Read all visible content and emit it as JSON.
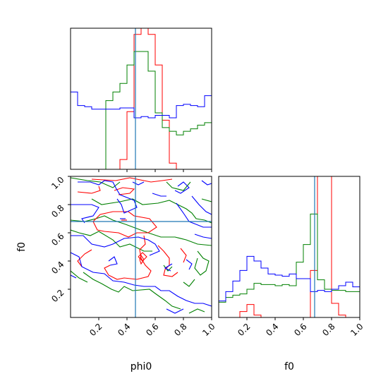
{
  "chart_data": {
    "type": "corner",
    "parameters": [
      "phi0",
      "f0"
    ],
    "colors": {
      "red": "#ff0000",
      "green": "#008000",
      "blue": "#0000ff",
      "truth": "#1f77b4",
      "axes": "#000000"
    },
    "truth": {
      "phi0": 0.46,
      "f0": 0.68
    },
    "ticks": {
      "values": [
        0.2,
        0.4,
        0.6,
        0.8,
        1.0
      ],
      "labels": [
        "0.2",
        "0.4",
        "0.6",
        "0.8",
        "1.0"
      ]
    },
    "labels": {
      "xlabel_left": "phi0",
      "xlabel_right": "f0",
      "ylabel": "f0"
    },
    "ranges": {
      "phi0": [
        0,
        1
      ],
      "f0": [
        0,
        1
      ]
    },
    "hist_phi0": {
      "bins": 20,
      "red": [
        0,
        0,
        0,
        0,
        0,
        0,
        0,
        0.08,
        0.47,
        1.1,
        1.15,
        1.1,
        0.85,
        0.4,
        0.05,
        0,
        0,
        0,
        0,
        0
      ],
      "green": [
        0,
        0,
        0,
        0,
        0,
        0.56,
        0.63,
        0.7,
        0.85,
        0.96,
        0.96,
        0.8,
        0.46,
        0.34,
        0.31,
        0.28,
        0.31,
        0.33,
        0.36,
        0.38
      ],
      "blue": [
        0.63,
        0.52,
        0.51,
        0.49,
        0.49,
        0.49,
        0.49,
        0.5,
        0.5,
        0.42,
        0.43,
        0.42,
        0.44,
        0.44,
        0.42,
        0.52,
        0.53,
        0.52,
        0.51,
        0.6
      ]
    },
    "hist_f0": {
      "bins": 20,
      "red": [
        0,
        0,
        0,
        0.05,
        0.11,
        0.02,
        0,
        0,
        0,
        0,
        0,
        0,
        0,
        0.4,
        1.2,
        1.2,
        0.12,
        0.02,
        0,
        0
      ],
      "green": [
        0.13,
        0.17,
        0.19,
        0.2,
        0.24,
        0.29,
        0.28,
        0.28,
        0.27,
        0.28,
        0.27,
        0.47,
        0.62,
        0.88,
        0.32,
        0.24,
        0.23,
        0.23,
        0.22,
        0.22
      ],
      "blue": [
        0.14,
        0.22,
        0.31,
        0.4,
        0.52,
        0.48,
        0.42,
        0.37,
        0.36,
        0.35,
        0.37,
        0.33,
        0.33,
        0.22,
        0.23,
        0.22,
        0.24,
        0.27,
        0.3,
        0.26
      ]
    },
    "contours": {
      "red": [
        [
          [
            0.15,
            0.98
          ],
          [
            0.32,
            0.97
          ],
          [
            0.42,
            0.99
          ],
          [
            0.57,
            0.96
          ],
          [
            0.65,
            0.97
          ],
          [
            0.72,
            0.98
          ]
        ],
        [
          [
            0.05,
            0.89
          ],
          [
            0.15,
            0.88
          ],
          [
            0.21,
            0.9
          ],
          [
            0.2,
            0.93
          ]
        ],
        [
          [
            0.31,
            0.9
          ],
          [
            0.37,
            0.92
          ],
          [
            0.45,
            0.91
          ],
          [
            0.42,
            0.88
          ],
          [
            0.34,
            0.87
          ]
        ],
        [
          [
            0.16,
            0.68
          ],
          [
            0.21,
            0.73
          ],
          [
            0.3,
            0.75
          ],
          [
            0.41,
            0.75
          ],
          [
            0.45,
            0.72
          ],
          [
            0.56,
            0.7
          ],
          [
            0.61,
            0.64
          ],
          [
            0.55,
            0.6
          ],
          [
            0.47,
            0.6
          ],
          [
            0.41,
            0.57
          ],
          [
            0.34,
            0.6
          ],
          [
            0.24,
            0.61
          ],
          [
            0.19,
            0.62
          ],
          [
            0.16,
            0.68
          ]
        ],
        [
          [
            0.52,
            0.58
          ],
          [
            0.53,
            0.52
          ],
          [
            0.49,
            0.48
          ],
          [
            0.5,
            0.42
          ],
          [
            0.53,
            0.37
          ],
          [
            0.57,
            0.33
          ],
          [
            0.55,
            0.29
          ],
          [
            0.47,
            0.27
          ],
          [
            0.38,
            0.28
          ],
          [
            0.33,
            0.27
          ],
          [
            0.27,
            0.3
          ],
          [
            0.24,
            0.35
          ],
          [
            0.28,
            0.37
          ]
        ],
        [
          [
            0.62,
            0.51
          ],
          [
            0.66,
            0.47
          ],
          [
            0.7,
            0.42
          ],
          [
            0.7,
            0.37
          ],
          [
            0.67,
            0.34
          ],
          [
            0.66,
            0.3
          ],
          [
            0.72,
            0.29
          ],
          [
            0.76,
            0.32
          ]
        ],
        [
          [
            0.78,
            0.49
          ],
          [
            0.82,
            0.44
          ],
          [
            0.8,
            0.39
          ]
        ],
        [
          [
            0.48,
            0.43
          ],
          [
            0.51,
            0.46
          ],
          [
            0.54,
            0.43
          ],
          [
            0.51,
            0.4
          ],
          [
            0.48,
            0.43
          ]
        ],
        [
          [
            0.15,
            0.48
          ],
          [
            0.1,
            0.45
          ],
          [
            0.05,
            0.4
          ],
          [
            0.08,
            0.36
          ]
        ]
      ],
      "green": [
        [
          [
            0.0,
            0.99
          ],
          [
            0.12,
            0.97
          ],
          [
            0.21,
            0.96
          ],
          [
            0.3,
            0.92
          ],
          [
            0.35,
            0.96
          ]
        ],
        [
          [
            0.15,
            0.84
          ],
          [
            0.22,
            0.8
          ],
          [
            0.35,
            0.82
          ],
          [
            0.44,
            0.84
          ],
          [
            0.51,
            0.8
          ],
          [
            0.62,
            0.81
          ],
          [
            0.7,
            0.83
          ],
          [
            0.74,
            0.81
          ],
          [
            0.82,
            0.77
          ],
          [
            0.86,
            0.74
          ],
          [
            0.89,
            0.7
          ],
          [
            0.95,
            0.69
          ],
          [
            1.0,
            0.67
          ]
        ],
        [
          [
            0.0,
            0.69
          ],
          [
            0.1,
            0.68
          ],
          [
            0.18,
            0.7
          ],
          [
            0.24,
            0.72
          ],
          [
            0.3,
            0.69
          ],
          [
            0.39,
            0.66
          ],
          [
            0.47,
            0.63
          ],
          [
            0.55,
            0.6
          ],
          [
            0.64,
            0.57
          ],
          [
            0.74,
            0.57
          ],
          [
            0.82,
            0.55
          ],
          [
            0.9,
            0.52
          ],
          [
            1.0,
            0.51
          ]
        ],
        [
          [
            0.0,
            0.62
          ],
          [
            0.06,
            0.6
          ],
          [
            0.14,
            0.58
          ],
          [
            0.2,
            0.61
          ],
          [
            0.3,
            0.55
          ],
          [
            0.35,
            0.5
          ],
          [
            0.42,
            0.52
          ],
          [
            0.52,
            0.47
          ],
          [
            0.58,
            0.47
          ]
        ],
        [
          [
            0.09,
            0.32
          ],
          [
            0.16,
            0.27
          ],
          [
            0.22,
            0.24
          ],
          [
            0.29,
            0.2
          ],
          [
            0.34,
            0.18
          ],
          [
            0.38,
            0.22
          ],
          [
            0.44,
            0.19
          ],
          [
            0.56,
            0.2
          ],
          [
            0.6,
            0.17
          ],
          [
            0.67,
            0.12
          ],
          [
            0.72,
            0.08
          ],
          [
            0.78,
            0.06
          ]
        ],
        [
          [
            0.0,
            0.33
          ],
          [
            0.06,
            0.28
          ],
          [
            0.12,
            0.25
          ]
        ],
        [
          [
            0.68,
            0.96
          ],
          [
            0.72,
            0.92
          ],
          [
            0.8,
            0.9
          ],
          [
            0.85,
            0.96
          ]
        ],
        [
          [
            0.9,
            0.47
          ],
          [
            0.94,
            0.42
          ],
          [
            0.98,
            0.4
          ],
          [
            0.96,
            0.33
          ],
          [
            0.92,
            0.3
          ],
          [
            0.88,
            0.35
          ],
          [
            0.9,
            0.42
          ]
        ],
        [
          [
            0.93,
            0.84
          ],
          [
            1.0,
            0.82
          ]
        ],
        [
          [
            0.84,
            0.03
          ],
          [
            0.9,
            0.06
          ],
          [
            0.95,
            0.04
          ]
        ],
        [
          [
            0.8,
            0.25
          ],
          [
            0.84,
            0.22
          ],
          [
            0.88,
            0.27
          ]
        ],
        [
          [
            0.72,
            0.36
          ],
          [
            0.69,
            0.33
          ],
          [
            0.66,
            0.37
          ]
        ]
      ],
      "blue": [
        [
          [
            0.05,
            0.96
          ],
          [
            0.14,
            0.96
          ],
          [
            0.2,
            0.94
          ],
          [
            0.24,
            0.97
          ],
          [
            0.3,
            0.96
          ],
          [
            0.32,
            0.92
          ],
          [
            0.35,
            0.87
          ],
          [
            0.45,
            0.83
          ],
          [
            0.47,
            0.78
          ],
          [
            0.38,
            0.74
          ],
          [
            0.36,
            0.8
          ],
          [
            0.33,
            0.84
          ]
        ],
        [
          [
            0.0,
            0.8
          ],
          [
            0.07,
            0.8
          ],
          [
            0.15,
            0.8
          ],
          [
            0.2,
            0.78
          ],
          [
            0.16,
            0.72
          ],
          [
            0.08,
            0.7
          ],
          [
            0.1,
            0.67
          ]
        ],
        [
          [
            0.0,
            0.58
          ],
          [
            0.09,
            0.58
          ],
          [
            0.15,
            0.52
          ],
          [
            0.24,
            0.5
          ],
          [
            0.3,
            0.52
          ],
          [
            0.38,
            0.56
          ],
          [
            0.48,
            0.57
          ],
          [
            0.55,
            0.55
          ],
          [
            0.6,
            0.52
          ],
          [
            0.63,
            0.47
          ],
          [
            0.56,
            0.44
          ]
        ],
        [
          [
            0.0,
            0.46
          ],
          [
            0.06,
            0.43
          ],
          [
            0.08,
            0.36
          ],
          [
            0.16,
            0.32
          ],
          [
            0.24,
            0.31
          ],
          [
            0.3,
            0.26
          ],
          [
            0.38,
            0.25
          ],
          [
            0.45,
            0.23
          ],
          [
            0.52,
            0.22
          ],
          [
            0.6,
            0.22
          ],
          [
            0.64,
            0.19
          ],
          [
            0.7,
            0.19
          ],
          [
            0.76,
            0.15
          ],
          [
            0.82,
            0.12
          ],
          [
            0.88,
            0.1
          ],
          [
            0.94,
            0.1
          ],
          [
            1.0,
            0.08
          ]
        ],
        [
          [
            0.0,
            0.3
          ],
          [
            0.04,
            0.28
          ]
        ],
        [
          [
            0.58,
            0.88
          ],
          [
            0.64,
            0.86
          ],
          [
            0.68,
            0.86
          ]
        ],
        [
          [
            0.74,
            0.9
          ],
          [
            0.78,
            0.88
          ],
          [
            0.84,
            0.92
          ],
          [
            0.8,
            0.96
          ],
          [
            0.76,
            0.93
          ]
        ],
        [
          [
            0.75,
            0.81
          ],
          [
            0.8,
            0.74
          ],
          [
            0.84,
            0.68
          ],
          [
            0.89,
            0.66
          ],
          [
            0.94,
            0.64
          ],
          [
            1.0,
            0.64
          ]
        ],
        [
          [
            0.86,
            0.86
          ],
          [
            0.91,
            0.8
          ],
          [
            0.96,
            0.75
          ],
          [
            1.0,
            0.73
          ]
        ],
        [
          [
            0.88,
            0.59
          ],
          [
            0.94,
            0.57
          ],
          [
            1.0,
            0.56
          ]
        ],
        [
          [
            0.71,
            0.33
          ],
          [
            0.67,
            0.35
          ],
          [
            0.72,
            0.38
          ]
        ],
        [
          [
            0.82,
            0.41
          ],
          [
            0.86,
            0.38
          ],
          [
            0.84,
            0.34
          ]
        ],
        [
          [
            0.93,
            0.97
          ],
          [
            0.97,
            0.94
          ],
          [
            1.0,
            0.95
          ]
        ],
        [
          [
            0.68,
            0.06
          ],
          [
            0.74,
            0.03
          ],
          [
            0.8,
            0.06
          ]
        ],
        [
          [
            0.44,
            0.96
          ],
          [
            0.48,
            0.94
          ],
          [
            0.52,
            0.96
          ]
        ],
        [
          [
            0.35,
            0.7
          ],
          [
            0.39,
            0.7
          ]
        ],
        [
          [
            0.27,
            0.4
          ],
          [
            0.31,
            0.43
          ],
          [
            0.33,
            0.38
          ],
          [
            0.28,
            0.37
          ]
        ]
      ],
      "red_markers": [
        [
          [
            0.49,
            0.41
          ],
          [
            0.5,
            0.44
          ],
          [
            0.52,
            0.41
          ],
          [
            0.5,
            0.38
          ],
          [
            0.49,
            0.41
          ]
        ],
        [
          [
            0.36,
            0.69
          ],
          [
            0.4,
            0.69
          ]
        ]
      ]
    }
  }
}
